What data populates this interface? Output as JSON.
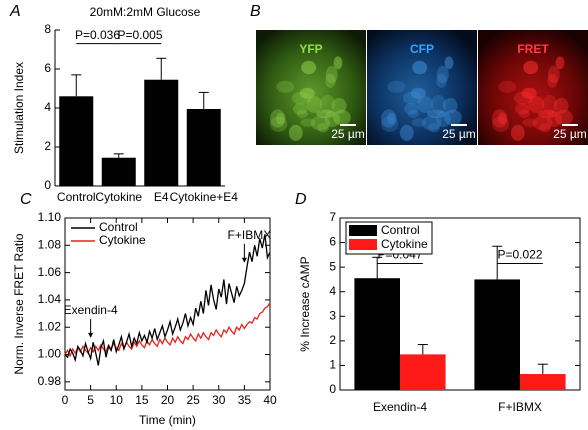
{
  "chart_data": [
    {
      "type": "bar",
      "panel": "A",
      "title": "20mM:2mM Glucose",
      "y_label": "Stimulation Index",
      "categories": [
        "Control",
        "Cytokine",
        "E4",
        "Cytokine+E4"
      ],
      "values": [
        4.6,
        1.45,
        5.45,
        3.95
      ],
      "errors": [
        1.1,
        0.2,
        1.1,
        0.85
      ],
      "color": "#000000",
      "ylim": [
        0,
        8
      ],
      "yticks": [
        0,
        2,
        4,
        6,
        8
      ],
      "annotations": [
        "P=0.036",
        "P=0.005"
      ]
    },
    {
      "type": "line",
      "panel": "C",
      "x_label": "Time (min)",
      "y_label": "Norm. Inverse FRET Ratio",
      "x": [
        0,
        0.5,
        1,
        1.5,
        2,
        2.5,
        3,
        3.5,
        4,
        4.5,
        5,
        5.5,
        6,
        6.5,
        7,
        7.5,
        8,
        8.5,
        9,
        9.5,
        10,
        10.5,
        11,
        11.5,
        12,
        12.5,
        13,
        13.5,
        14,
        14.5,
        15,
        15.5,
        16,
        16.5,
        17,
        17.5,
        18,
        18.5,
        19,
        19.5,
        20,
        20.5,
        21,
        21.5,
        22,
        22.5,
        23,
        23.5,
        24,
        24.5,
        25,
        25.5,
        26,
        26.5,
        27,
        27.5,
        28,
        28.5,
        29,
        29.5,
        30,
        30.5,
        31,
        31.5,
        32,
        32.5,
        33,
        33.5,
        34,
        34.5,
        35,
        35.5,
        36,
        36.5,
        37,
        37.5,
        38,
        38.5,
        39,
        39.5,
        40
      ],
      "series": [
        {
          "name": "Control",
          "color": "#000000",
          "values": [
            1.0,
            0.998,
            1.004,
            1.001,
            0.996,
            1.006,
            1.003,
            0.999,
            1.008,
            1.002,
            0.997,
            1.009,
            1.001,
            0.992,
            1.005,
            1.01,
            0.998,
            1.006,
            1.003,
            1.011,
            1.002,
            1.007,
            1.013,
            1.004,
            1.009,
            1.015,
            1.006,
            1.012,
            1.008,
            1.016,
            1.01,
            1.014,
            1.009,
            1.017,
            1.012,
            1.019,
            1.011,
            1.016,
            1.021,
            1.013,
            1.018,
            1.024,
            1.015,
            1.02,
            1.026,
            1.018,
            1.023,
            1.03,
            1.021,
            1.027,
            1.022,
            1.034,
            1.028,
            1.039,
            1.03,
            1.047,
            1.036,
            1.051,
            1.04,
            1.033,
            1.048,
            1.042,
            1.055,
            1.037,
            1.052,
            1.045,
            1.038,
            1.05,
            1.043,
            1.047,
            1.052,
            1.064,
            1.075,
            1.068,
            1.08,
            1.072,
            1.085,
            1.078,
            1.088,
            1.071,
            1.075
          ]
        },
        {
          "name": "Cytokine",
          "color": "#e8201a",
          "values": [
            1.0,
            1.003,
            0.999,
            1.004,
            1.001,
            1.005,
            1.002,
            1.006,
            1.003,
            1.001,
            1.005,
            1.002,
            1.006,
            1.003,
            1.007,
            1.004,
            1.002,
            1.007,
            1.004,
            1.008,
            1.005,
            1.003,
            1.008,
            1.005,
            1.009,
            1.006,
            1.004,
            1.009,
            1.006,
            1.01,
            1.007,
            1.005,
            1.01,
            1.007,
            1.011,
            1.008,
            1.006,
            1.011,
            1.008,
            1.012,
            1.009,
            1.007,
            1.012,
            1.009,
            1.013,
            1.01,
            1.008,
            1.013,
            1.011,
            1.015,
            1.012,
            1.01,
            1.015,
            1.012,
            1.016,
            1.013,
            1.011,
            1.016,
            1.014,
            1.018,
            1.015,
            1.013,
            1.018,
            1.016,
            1.02,
            1.017,
            1.015,
            1.02,
            1.018,
            1.022,
            1.019,
            1.022,
            1.024,
            1.023,
            1.027,
            1.026,
            1.03,
            1.031,
            1.034,
            1.035,
            1.038
          ]
        }
      ],
      "xlim": [
        0,
        40
      ],
      "xticks": [
        0,
        5,
        10,
        15,
        20,
        25,
        30,
        35,
        40
      ],
      "ylim": [
        0.974,
        1.1
      ],
      "yticks": [
        {
          "value": 0.98,
          "label": "0.98"
        },
        {
          "value": 1.0,
          "label": "1.00"
        },
        {
          "value": 1.02,
          "label": "1.02"
        },
        {
          "value": 1.04,
          "label": "1.04"
        },
        {
          "value": 1.06,
          "label": "1.06"
        },
        {
          "value": 1.08,
          "label": "1.08"
        },
        {
          "value": 1.1,
          "label": "1.10"
        }
      ],
      "legend": "top-left",
      "annotations": [
        {
          "text": "Exendin-4",
          "x": 5
        },
        {
          "text": "F+IBMX",
          "x": 35
        }
      ]
    },
    {
      "type": "grouped-bar",
      "panel": "D",
      "y_label": "% Increase cAMP",
      "categories": [
        "Exendin-4",
        "F+IBMX"
      ],
      "series": [
        {
          "name": "Control",
          "color": "#000000",
          "values": [
            4.55,
            4.5
          ],
          "errors": [
            0.85,
            1.35
          ]
        },
        {
          "name": "Cytokine",
          "color": "#ff1a1a",
          "values": [
            1.45,
            0.65
          ],
          "errors": [
            0.4,
            0.4
          ]
        }
      ],
      "ylim": [
        0,
        7
      ],
      "yticks": [
        0,
        1,
        2,
        3,
        4,
        5,
        6,
        7
      ],
      "legend": "top-left",
      "annotations": [
        "P=0.047",
        "P=0.022"
      ]
    }
  ],
  "image_panel": {
    "panel": "B",
    "images": [
      {
        "label": "YFP",
        "scale": "25 µm"
      },
      {
        "label": "CFP",
        "scale": "25 µm"
      },
      {
        "label": "FRET",
        "scale": "25 µm"
      }
    ]
  }
}
